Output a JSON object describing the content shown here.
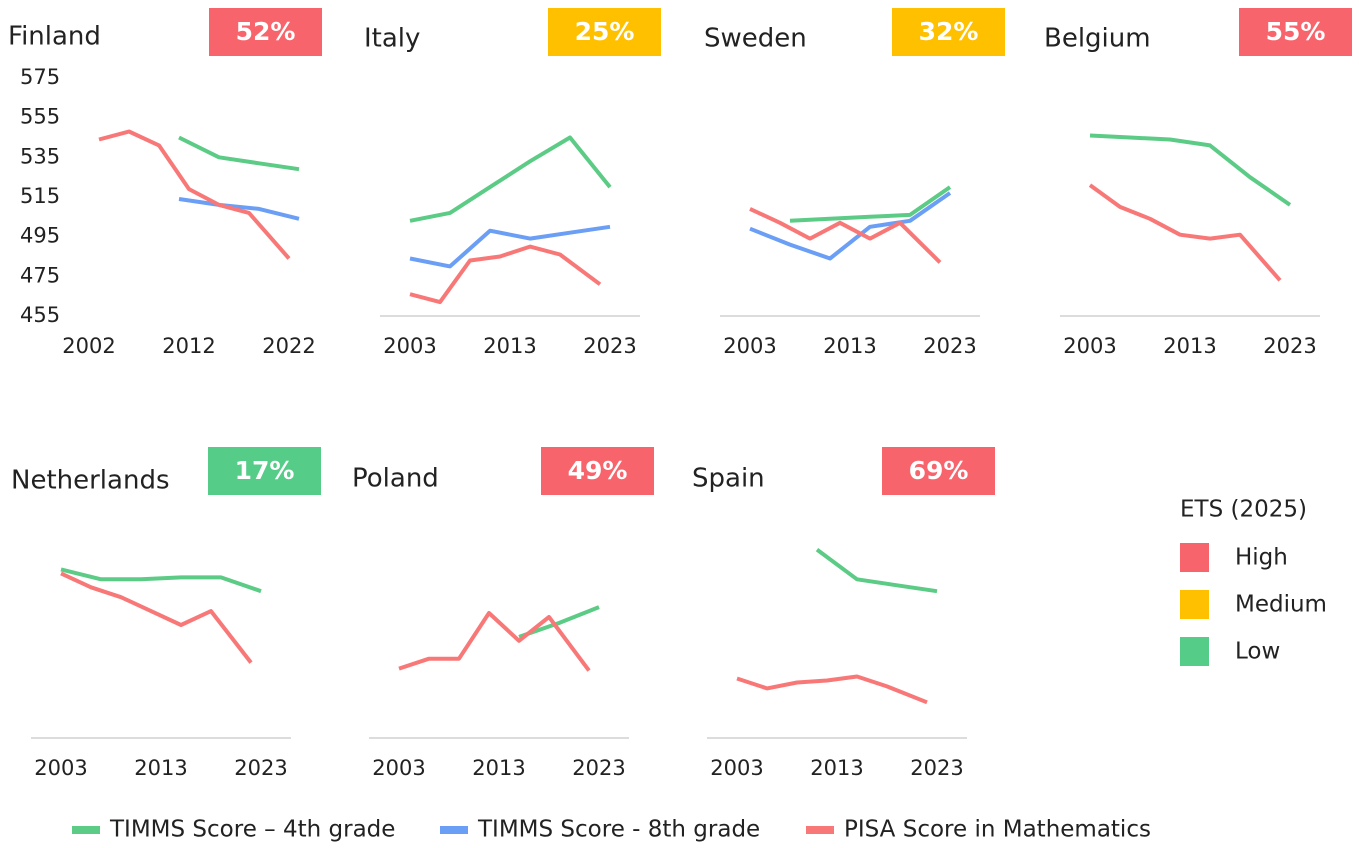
{
  "chart_data": [
    {
      "type": "line",
      "title": "Finland",
      "badge": {
        "value": 52,
        "value_label": "52%",
        "level": "High"
      },
      "xlim": [
        2000,
        2026
      ],
      "xticks": [
        2002,
        2012,
        2022
      ],
      "ylim": [
        455,
        575
      ],
      "yticks": [
        455,
        475,
        495,
        515,
        535,
        555,
        575
      ],
      "series": [
        {
          "name": "TIMMS Score – 4th grade",
          "color": "#5ccb85",
          "x": [
            2011,
            2015,
            2019,
            2023
          ],
          "values": [
            545,
            535,
            532,
            529
          ]
        },
        {
          "name": "TIMMS Score - 8th grade",
          "color": "#6b9ef5",
          "x": [
            2011,
            2015,
            2019,
            2023
          ],
          "values": [
            514,
            511,
            509,
            504
          ]
        },
        {
          "name": "PISA Score in Mathematics",
          "color": "#f87878",
          "x": [
            2003,
            2006,
            2009,
            2012,
            2015,
            2018,
            2022
          ],
          "values": [
            544,
            548,
            541,
            519,
            511,
            507,
            484
          ]
        }
      ]
    },
    {
      "type": "line",
      "title": "Italy",
      "badge": {
        "value": 25,
        "value_label": "25%",
        "level": "Medium"
      },
      "xlim": [
        2000,
        2026
      ],
      "xticks": [
        2003,
        2013,
        2023
      ],
      "ylim": [
        455,
        575
      ],
      "series": [
        {
          "name": "TIMMS Score – 4th grade",
          "color": "#5ccb85",
          "x": [
            2003,
            2007,
            2011,
            2015,
            2019,
            2023
          ],
          "values": [
            503,
            507,
            520,
            533,
            545,
            520
          ]
        },
        {
          "name": "TIMMS Score - 8th grade",
          "color": "#6b9ef5",
          "x": [
            2003,
            2007,
            2011,
            2015,
            2019,
            2023
          ],
          "values": [
            484,
            480,
            498,
            494,
            497,
            500
          ]
        },
        {
          "name": "PISA Score in Mathematics",
          "color": "#f87878",
          "x": [
            2003,
            2006,
            2009,
            2012,
            2015,
            2018,
            2022
          ],
          "values": [
            466,
            462,
            483,
            485,
            490,
            486,
            471
          ]
        }
      ]
    },
    {
      "type": "line",
      "title": "Sweden",
      "badge": {
        "value": 32,
        "value_label": "32%",
        "level": "Medium"
      },
      "xlim": [
        2000,
        2026
      ],
      "xticks": [
        2003,
        2013,
        2023
      ],
      "ylim": [
        455,
        575
      ],
      "series": [
        {
          "name": "TIMMS Score – 4th grade",
          "color": "#5ccb85",
          "x": [
            2007,
            2011,
            2015,
            2019,
            2023
          ],
          "values": [
            503,
            504,
            505,
            506,
            520
          ]
        },
        {
          "name": "TIMMS Score - 8th grade",
          "color": "#6b9ef5",
          "x": [
            2003,
            2007,
            2011,
            2015,
            2019,
            2023
          ],
          "values": [
            499,
            491,
            484,
            500,
            503,
            517
          ]
        },
        {
          "name": "PISA Score in Mathematics",
          "color": "#f87878",
          "x": [
            2003,
            2006,
            2009,
            2012,
            2015,
            2018,
            2022
          ],
          "values": [
            509,
            502,
            494,
            502,
            494,
            502,
            482
          ]
        }
      ]
    },
    {
      "type": "line",
      "title": "Belgium",
      "badge": {
        "value": 55,
        "value_label": "55%",
        "level": "High"
      },
      "xlim": [
        2000,
        2026
      ],
      "xticks": [
        2003,
        2013,
        2023
      ],
      "ylim": [
        455,
        575
      ],
      "series": [
        {
          "name": "TIMMS Score – 4th grade",
          "color": "#5ccb85",
          "x": [
            2003,
            2007,
            2011,
            2015,
            2019,
            2023
          ],
          "values": [
            546,
            545,
            544,
            541,
            525,
            511
          ]
        },
        {
          "name": "PISA Score in Mathematics",
          "color": "#f87878",
          "x": [
            2003,
            2006,
            2009,
            2012,
            2015,
            2018,
            2022
          ],
          "values": [
            521,
            510,
            504,
            496,
            494,
            496,
            473
          ]
        }
      ]
    },
    {
      "type": "line",
      "title": "Netherlands",
      "badge": {
        "value": 17,
        "value_label": "17%",
        "level": "Low"
      },
      "xlim": [
        2000,
        2026
      ],
      "xticks": [
        2003,
        2013,
        2023
      ],
      "ylim": [
        455,
        575
      ],
      "series": [
        {
          "name": "TIMMS Score – 4th grade",
          "color": "#5ccb85",
          "x": [
            2003,
            2007,
            2011,
            2015,
            2019,
            2023
          ],
          "values": [
            540,
            535,
            535,
            536,
            536,
            529
          ]
        },
        {
          "name": "PISA Score in Mathematics",
          "color": "#f87878",
          "x": [
            2003,
            2006,
            2009,
            2012,
            2015,
            2018,
            2022
          ],
          "values": [
            538,
            531,
            526,
            519,
            512,
            519,
            493
          ]
        }
      ]
    },
    {
      "type": "line",
      "title": "Poland",
      "badge": {
        "value": 49,
        "value_label": "49%",
        "level": "High"
      },
      "xlim": [
        2000,
        2026
      ],
      "xticks": [
        2003,
        2013,
        2023
      ],
      "ylim": [
        455,
        575
      ],
      "series": [
        {
          "name": "TIMMS Score – 4th grade",
          "color": "#5ccb85",
          "x": [
            2015,
            2019,
            2023
          ],
          "values": [
            506,
            513,
            521
          ]
        },
        {
          "name": "PISA Score in Mathematics",
          "color": "#f87878",
          "x": [
            2003,
            2006,
            2009,
            2012,
            2015,
            2018,
            2022
          ],
          "values": [
            490,
            495,
            495,
            518,
            504,
            516,
            489
          ]
        }
      ]
    },
    {
      "type": "line",
      "title": "Spain",
      "badge": {
        "value": 69,
        "value_label": "69%",
        "level": "High"
      },
      "xlim": [
        2000,
        2026
      ],
      "xticks": [
        2003,
        2013,
        2023
      ],
      "ylim": [
        455,
        575
      ],
      "series": [
        {
          "name": "TIMMS Score – 4th grade",
          "color": "#5ccb85",
          "x": [
            2011,
            2015,
            2019,
            2023
          ],
          "values": [
            550,
            535,
            532,
            529
          ]
        },
        {
          "name": "PISA Score in Mathematics",
          "color": "#f87878",
          "x": [
            2003,
            2006,
            2009,
            2012,
            2015,
            2018,
            2022
          ],
          "values": [
            485,
            480,
            483,
            484,
            486,
            481,
            473
          ]
        }
      ]
    }
  ],
  "ets_legend": {
    "title": "ETS (2025)",
    "items": [
      {
        "label": "High",
        "color": "#f8646c"
      },
      {
        "label": "Medium",
        "color": "#ffc000"
      },
      {
        "label": "Low",
        "color": "#55cc88"
      }
    ]
  }
}
